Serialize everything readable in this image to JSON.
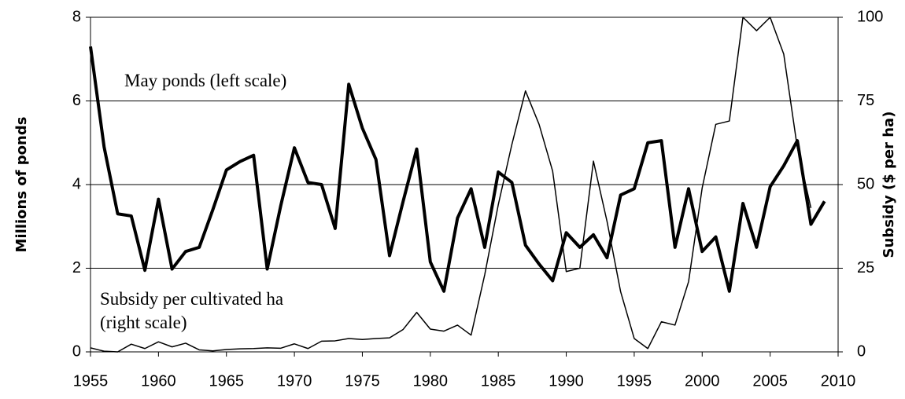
{
  "chart_data": {
    "type": "line",
    "y_label": "Millions of ponds",
    "y2_label": "Subsidy ($ per ha)",
    "x": [
      1955,
      1956,
      1957,
      1958,
      1959,
      1960,
      1961,
      1962,
      1963,
      1964,
      1965,
      1966,
      1967,
      1968,
      1969,
      1970,
      1971,
      1972,
      1973,
      1974,
      1975,
      1976,
      1977,
      1978,
      1979,
      1980,
      1981,
      1982,
      1983,
      1984,
      1985,
      1986,
      1987,
      1988,
      1989,
      1990,
      1991,
      1992,
      1993,
      1994,
      1995,
      1996,
      1997,
      1998,
      1999,
      2000,
      2001,
      2002,
      2003,
      2004,
      2005,
      2006,
      2007,
      2008,
      2009
    ],
    "series": [
      {
        "name": "May ponds (left scale)",
        "color": "#000000",
        "width": 4,
        "axis": "y",
        "values": [
          7.3,
          4.9,
          3.3,
          3.25,
          1.95,
          3.65,
          1.98,
          2.4,
          2.5,
          3.4,
          4.35,
          4.55,
          4.7,
          1.98,
          3.5,
          4.88,
          4.05,
          4.0,
          2.95,
          6.4,
          5.35,
          4.6,
          2.3,
          3.6,
          4.85,
          2.15,
          1.45,
          3.2,
          3.9,
          2.5,
          4.3,
          4.05,
          2.55,
          2.1,
          1.7,
          2.85,
          2.5,
          2.8,
          2.25,
          3.75,
          3.9,
          5.0,
          5.05,
          2.5,
          3.9,
          2.4,
          2.75,
          1.45,
          3.55,
          2.5,
          3.95,
          4.45,
          5.05,
          3.05,
          3.6
        ]
      },
      {
        "name": "Subsidy per cultivated ha (right scale)",
        "color": "#000000",
        "width": 1.5,
        "axis": "y2",
        "values": [
          1.2,
          0.2,
          0,
          2.3,
          1,
          3,
          1.5,
          2.6,
          0.6,
          0.3,
          0.7,
          0.9,
          1,
          1.2,
          1.1,
          2.4,
          1,
          3.2,
          3.3,
          4,
          3.7,
          4,
          4.2,
          6.7,
          11.8,
          6.8,
          6.2,
          8,
          5,
          23,
          44,
          62,
          78,
          68,
          54,
          24,
          25,
          57,
          39,
          18,
          4,
          1,
          9,
          8,
          21,
          49,
          68,
          69,
          100,
          96,
          100,
          89,
          61,
          43,
          null
        ]
      }
    ],
    "xlim": [
      1955,
      2010
    ],
    "xticks": [
      1955,
      1960,
      1965,
      1970,
      1975,
      1980,
      1985,
      1990,
      1995,
      2000,
      2005,
      2010
    ],
    "ylim": [
      0,
      8
    ],
    "yticks": [
      0,
      2,
      4,
      6,
      8
    ],
    "y2lim": [
      0,
      100
    ],
    "y2ticks": [
      0,
      25,
      50,
      75,
      100
    ],
    "grid": true
  }
}
